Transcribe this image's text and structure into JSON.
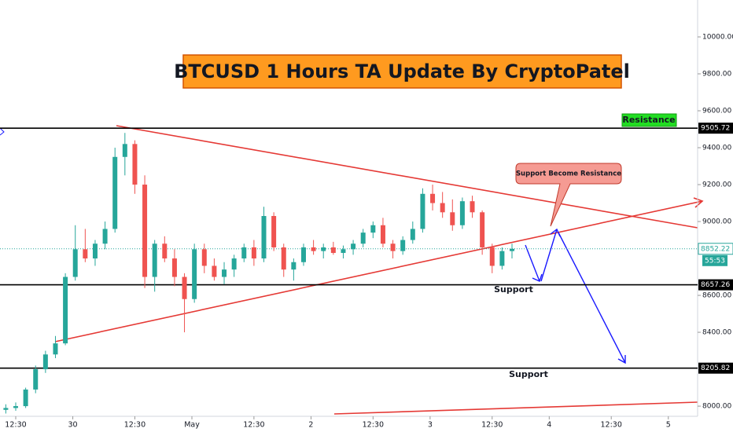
{
  "chart_data": {
    "type": "candlestick",
    "title": "BTCUSD 1 Hours TA Update By CryptoPatel",
    "x": [
      -2,
      0,
      2,
      4,
      6,
      8,
      10,
      12,
      14,
      16,
      18,
      20,
      22,
      24,
      26,
      28,
      30,
      32,
      34,
      36,
      38,
      40,
      42,
      44,
      46,
      48,
      50,
      52,
      54,
      56,
      58,
      60,
      62,
      64,
      66,
      68,
      70,
      72,
      74,
      76,
      78,
      80,
      82,
      84,
      86,
      88,
      90,
      92,
      94,
      96,
      98,
      100
    ],
    "open": [
      7980,
      7990,
      8000,
      8090,
      8200,
      8280,
      8340,
      8700,
      8850,
      8800,
      8880,
      8960,
      9350,
      9420,
      9200,
      8700,
      8880,
      8800,
      8700,
      8580,
      8850,
      8760,
      8700,
      8740,
      8800,
      8860,
      8800,
      9030,
      8860,
      8740,
      8780,
      8860,
      8840,
      8860,
      8830,
      8850,
      8880,
      8940,
      8980,
      8880,
      8840,
      8900,
      8960,
      9150,
      9100,
      9050,
      8980,
      9110,
      9050,
      8860,
      8760,
      8840
    ],
    "high": [
      8010,
      8020,
      8100,
      8220,
      8300,
      8380,
      8720,
      8980,
      8960,
      8900,
      9000,
      9400,
      9480,
      9440,
      9250,
      8900,
      8920,
      8850,
      8720,
      8880,
      8880,
      8800,
      8780,
      8820,
      8880,
      8900,
      9080,
      9050,
      8880,
      8800,
      8880,
      8900,
      8880,
      8890,
      8870,
      8900,
      8960,
      9000,
      9020,
      8900,
      8920,
      9000,
      9180,
      9200,
      9160,
      9120,
      9130,
      9140,
      9060,
      8880,
      8860,
      8880
    ],
    "low": [
      7960,
      7975,
      7990,
      8070,
      8180,
      8260,
      8330,
      8680,
      8780,
      8760,
      8850,
      8940,
      9250,
      9150,
      8640,
      8620,
      8780,
      8650,
      8400,
      8560,
      8720,
      8680,
      8660,
      8700,
      8780,
      8760,
      8780,
      8840,
      8700,
      8680,
      8760,
      8820,
      8800,
      8820,
      8800,
      8820,
      8860,
      8910,
      8860,
      8800,
      8820,
      8880,
      8940,
      9060,
      9020,
      8950,
      8960,
      9020,
      8820,
      8720,
      8740,
      8800
    ],
    "close": [
      7990,
      8000,
      8090,
      8200,
      8280,
      8340,
      8700,
      8850,
      8800,
      8880,
      8960,
      9350,
      9420,
      9200,
      8700,
      8880,
      8800,
      8700,
      8580,
      8850,
      8760,
      8700,
      8740,
      8800,
      8860,
      8800,
      9030,
      8860,
      8740,
      8780,
      8860,
      8840,
      8860,
      8830,
      8850,
      8880,
      8940,
      8980,
      8880,
      8840,
      8900,
      8960,
      9150,
      9100,
      9050,
      8980,
      9110,
      9050,
      8860,
      8760,
      8840,
      8852.22
    ],
    "up_color": "#26a69a",
    "down_color": "#ef5350",
    "xlim": [
      -3.17,
      137.4
    ],
    "xticks": [
      {
        "value": 0,
        "label": "12:30"
      },
      {
        "value": 11.5,
        "label": "30"
      },
      {
        "value": 24,
        "label": "12:30"
      },
      {
        "value": 35.5,
        "label": "May"
      },
      {
        "value": 48,
        "label": "12:30"
      },
      {
        "value": 59.5,
        "label": "2"
      },
      {
        "value": 72,
        "label": "12:30"
      },
      {
        "value": 83.5,
        "label": "3"
      },
      {
        "value": 96,
        "label": "12:30"
      },
      {
        "value": 107.5,
        "label": "4"
      },
      {
        "value": 120,
        "label": "12:30"
      },
      {
        "value": 131.5,
        "label": "5"
      }
    ],
    "ylim": [
      7945,
      10200
    ],
    "yticks": [
      {
        "value": 8000,
        "label": "8000.00"
      },
      {
        "value": 8400,
        "label": "8400.00"
      },
      {
        "value": 8600,
        "label": "8600.00"
      },
      {
        "value": 9000,
        "label": "9000.00"
      },
      {
        "value": 9200,
        "label": "9200.00"
      },
      {
        "value": 9400,
        "label": "9400.00"
      },
      {
        "value": 9600,
        "label": "9600.00"
      },
      {
        "value": 9800,
        "label": "9800.00"
      },
      {
        "value": 10000,
        "label": "10000.00"
      }
    ],
    "levels": [
      9505.72,
      8657.26,
      8205.82
    ],
    "last_price": 8852.22,
    "countdown": "55:53",
    "annotations": [
      "Resistance",
      "Support Become Resistance",
      "Support",
      "Support"
    ]
  }
}
